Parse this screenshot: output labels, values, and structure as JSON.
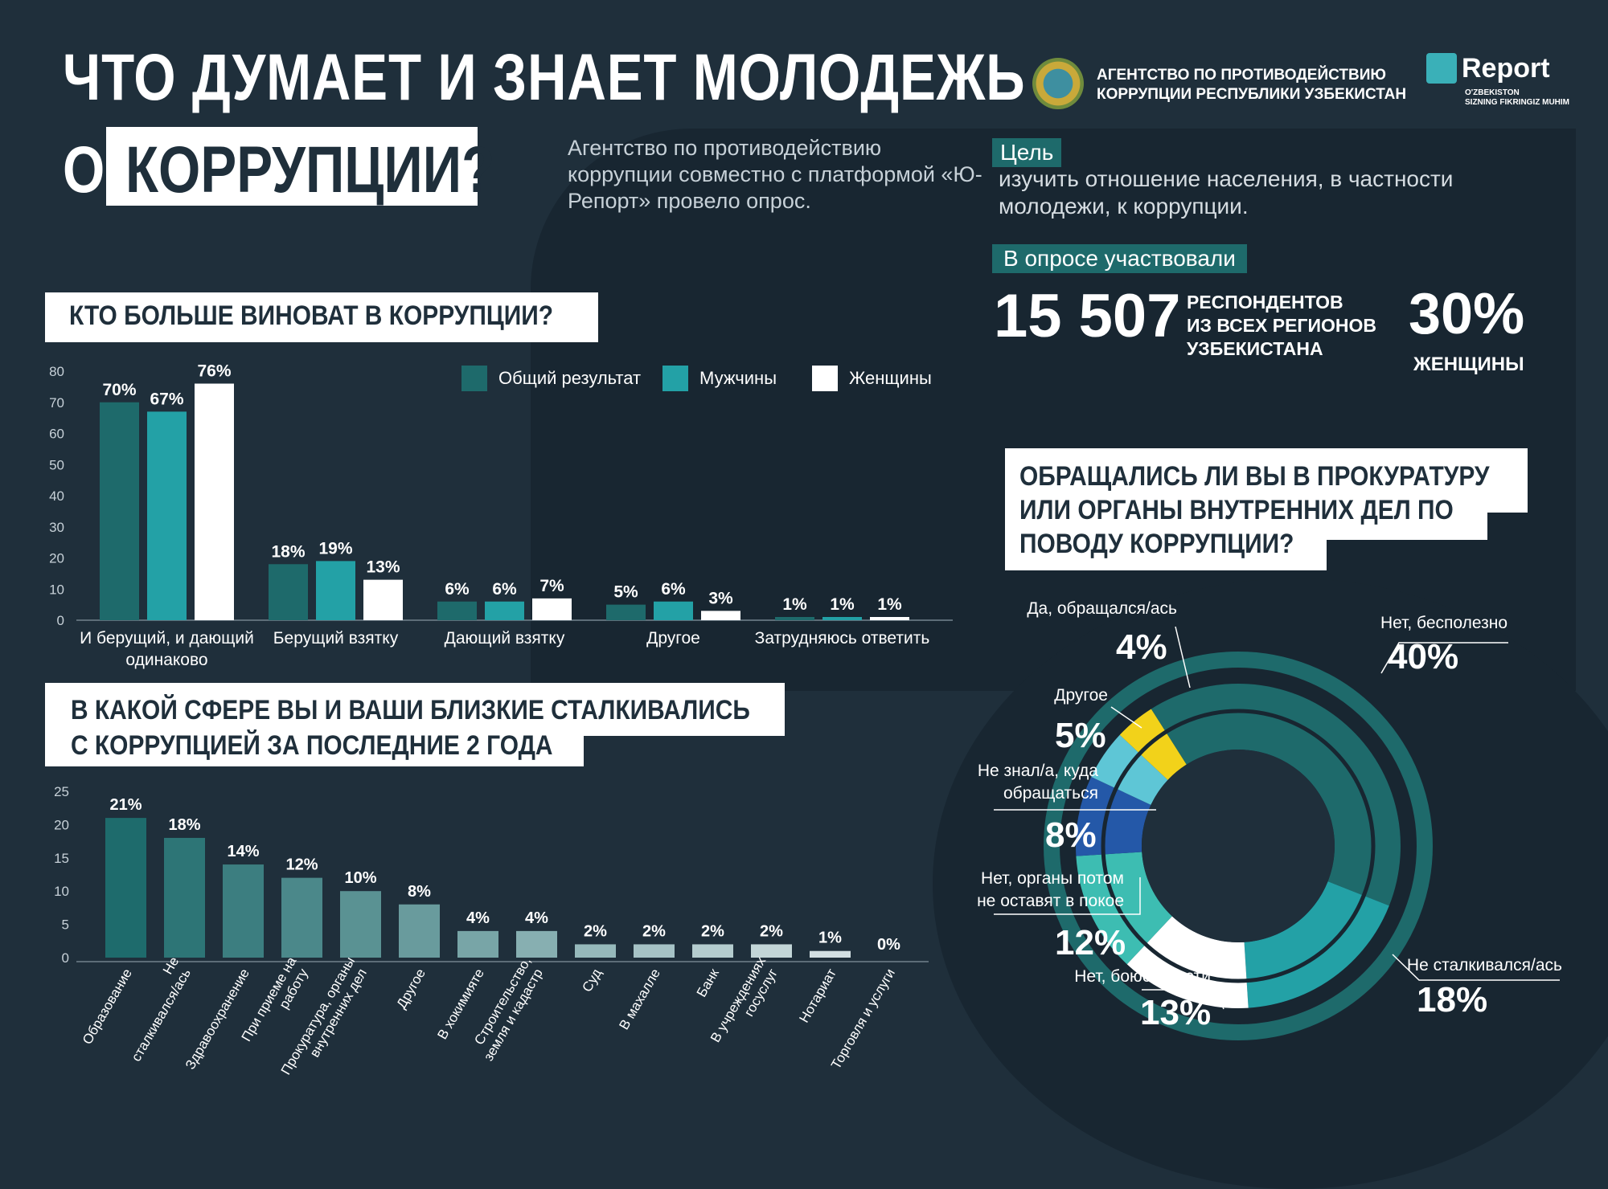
{
  "header": {
    "title_line1": "ЧТО ДУМАЕТ И ЗНАЕТ МОЛОДЕЖЬ",
    "title_prefix": "О",
    "title_highlight": "КОРРУПЦИИ?",
    "agency_line1": "АГЕНТСТВО ПО ПРОТИВОДЕЙСТВИЮ",
    "agency_line2": "КОРРУПЦИИ РЕСПУБЛИКИ УЗБЕКИСТАН",
    "report_brand": "Report",
    "report_sub1": "O'ZBEKISTON",
    "report_sub2": "SIZNING FIKRINGIZ MUHIM",
    "intro": "Агентство по противодействию коррупции совместно с платформой «Ю-Репорт» провело опрос."
  },
  "goal": {
    "label": "Цель",
    "text": "изучить отношение населения, в частности молодежи, к коррупции."
  },
  "participants": {
    "label": "В опросе участвовали",
    "count": "15 507",
    "desc_line1": "РЕСПОНДЕНТОВ",
    "desc_line2": "ИЗ ВСЕХ РЕГИОНОВ",
    "desc_line3": "УЗБЕКИСТАНА",
    "women_pct": "30%",
    "women_label": "ЖЕНЩИНЫ"
  },
  "colors": {
    "background": "#1f2f3b",
    "total": "#1e6a6b",
    "men": "#23a1a6",
    "women": "#ffffff"
  },
  "chart_data": [
    {
      "type": "bar",
      "title": "КТО БОЛЬШЕ ВИНОВАТ В КОРРУПЦИИ?",
      "categories": [
        "И берущий, и дающий одинаково",
        "Берущий взятку",
        "Дающий взятку",
        "Другое",
        "Затрудняюсь ответить"
      ],
      "category_lines": [
        [
          "И берущий, и дающий",
          "одинаково"
        ],
        [
          "Берущий взятку"
        ],
        [
          "Дающий взятку"
        ],
        [
          "Другое"
        ],
        [
          "Затрудняюсь ответить"
        ]
      ],
      "series": [
        {
          "name": "Общий результат",
          "values": [
            70,
            18,
            6,
            5,
            1
          ],
          "labels": [
            "70%",
            "18%",
            "6%",
            "5%",
            "1%"
          ]
        },
        {
          "name": "Мужчины",
          "values": [
            67,
            19,
            6,
            6,
            1
          ],
          "labels": [
            "67%",
            "19%",
            "6%",
            "6%",
            "1%"
          ]
        },
        {
          "name": "Женщины",
          "values": [
            76,
            13,
            7,
            3,
            1
          ],
          "labels": [
            "76%",
            "13%",
            "7%",
            "3%",
            "1%"
          ]
        }
      ],
      "ylim": [
        0,
        80
      ],
      "yticks": [
        "0",
        "10",
        "20",
        "30",
        "40",
        "50",
        "60",
        "70",
        "80"
      ],
      "legend": "top-right"
    },
    {
      "type": "bar",
      "title": "В КАКОЙ СФЕРЕ ВЫ И ВАШИ БЛИЗКИЕ СТАЛКИВАЛИСЬ С КОРРУПЦИЕЙ ЗА ПОСЛЕДНИЕ 2 ГОДА",
      "title_line1": "В КАКОЙ СФЕРЕ ВЫ И ВАШИ БЛИЗКИЕ СТАЛКИВАЛИСЬ",
      "title_line2": "С КОРРУПЦИЕЙ ЗА ПОСЛЕДНИЕ 2 ГОДА",
      "categories": [
        "Образование",
        "Не сталкивался/ась",
        "Здравоохранение",
        "При приеме на работу",
        "Прокуратура, органы внутренних дел",
        "Другое",
        "В хокимияте",
        "Строительство, земля и кадастр",
        "Суд",
        "В махалле",
        "Банк",
        "В учреждениях госуслуг",
        "Нотариат",
        "Торговля и услуги"
      ],
      "category_lines": [
        [
          "Образование"
        ],
        [
          "Не",
          "сталкивался/ась"
        ],
        [
          "Здравоохранение"
        ],
        [
          "При приеме на",
          "работу"
        ],
        [
          "Прокуратура, органы",
          "внутренних дел"
        ],
        [
          "Другое"
        ],
        [
          "В хокимияте"
        ],
        [
          "Строительство,",
          "земля и кадастр"
        ],
        [
          "Суд"
        ],
        [
          "В махалле"
        ],
        [
          "Банк"
        ],
        [
          "В учреждениях",
          "госуслуг"
        ],
        [
          "Нотариат"
        ],
        [
          "Торговля и услуги"
        ]
      ],
      "values": [
        21,
        18,
        14,
        12,
        10,
        8,
        4,
        4,
        2,
        2,
        2,
        2,
        1,
        0
      ],
      "labels": [
        "21%",
        "18%",
        "14%",
        "12%",
        "10%",
        "8%",
        "4%",
        "4%",
        "2%",
        "2%",
        "2%",
        "2%",
        "1%",
        "0%"
      ],
      "ylim": [
        0,
        25
      ],
      "yticks": [
        "0",
        "5",
        "10",
        "15",
        "20",
        "25"
      ]
    },
    {
      "type": "pie",
      "title": "ОБРАЩАЛИСЬ ЛИ ВЫ В ПРОКУРАТУРУ ИЛИ ОРГАНЫ ВНУТРЕННИХ ДЕЛ ПО ПОВОДУ КОРРУПЦИИ?",
      "title_lines": [
        "ОБРАЩАЛИСЬ ЛИ ВЫ В ПРОКУРАТУРУ",
        "ИЛИ ОРГАНЫ ВНУТРЕННИХ ДЕЛ ПО",
        "ПОВОДУ КОРРУПЦИИ?"
      ],
      "slices": [
        {
          "name": "Нет, бесполезно",
          "name_lines": [
            "Нет, бесполезно"
          ],
          "value": 40,
          "label": "40%",
          "color": "#1e6a6b"
        },
        {
          "name": "Не сталкивался/ась",
          "name_lines": [
            "Не сталкивался/ась"
          ],
          "value": 18,
          "label": "18%",
          "color": "#23a1a6"
        },
        {
          "name": "Нет, боюсь мести",
          "name_lines": [
            "Нет, боюсь мести"
          ],
          "value": 13,
          "label": "13%",
          "color": "#ffffff"
        },
        {
          "name": "Нет, органы потом не оставят в покое",
          "name_lines": [
            "Нет, органы потом",
            "не оставят в покое"
          ],
          "value": 12,
          "label": "12%",
          "color": "#3dbdb2"
        },
        {
          "name": "Не знал/а, куда обращаться",
          "name_lines": [
            "Не знал/а, куда",
            "обращаться"
          ],
          "value": 8,
          "label": "8%",
          "color": "#2458a8"
        },
        {
          "name": "Другое",
          "name_lines": [
            "Другое"
          ],
          "value": 5,
          "label": "5%",
          "color": "#5ec6d6"
        },
        {
          "name": "Да, обращался/ась",
          "name_lines": [
            "Да, обращался/ась"
          ],
          "value": 4,
          "label": "4%",
          "color": "#f2d21a"
        }
      ]
    }
  ]
}
